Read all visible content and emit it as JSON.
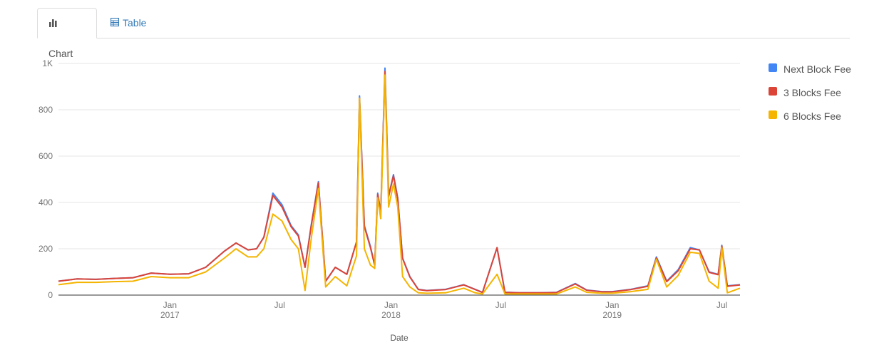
{
  "tabs": [
    {
      "label": "Chart",
      "icon": "bar-chart-icon",
      "active": true
    },
    {
      "label": "Table",
      "icon": "table-icon",
      "active": false
    }
  ],
  "colors": {
    "next": "#4285f4",
    "three": "#db4437",
    "six": "#f4b400",
    "grid": "#e6e6e6",
    "axis": "#333333",
    "text": "#757575"
  },
  "chart_data": {
    "type": "line",
    "title": "",
    "xlabel": "Date",
    "ylabel": "",
    "ylim": [
      0,
      1000
    ],
    "yticks": [
      0,
      200,
      400,
      600,
      800,
      1000
    ],
    "ytick_labels": [
      "0",
      "200",
      "400",
      "600",
      "800",
      "1K"
    ],
    "xlim": [
      "2016-07-01",
      "2019-07-31"
    ],
    "xticks": [
      {
        "date": "2017-01-01",
        "line1": "Jan",
        "line2": "2017"
      },
      {
        "date": "2017-07-01",
        "line1": "Jul",
        "line2": ""
      },
      {
        "date": "2018-01-01",
        "line1": "Jan",
        "line2": "2018"
      },
      {
        "date": "2018-07-01",
        "line1": "Jul",
        "line2": ""
      },
      {
        "date": "2019-01-01",
        "line1": "Jan",
        "line2": "2019"
      },
      {
        "date": "2019-07-01",
        "line1": "Jul",
        "line2": ""
      }
    ],
    "legend_position": "right",
    "series_names": [
      "Next Block Fee",
      "3 Blocks Fee",
      "6 Blocks Fee"
    ],
    "x": [
      "2016-07-01",
      "2016-08-01",
      "2016-09-01",
      "2016-10-01",
      "2016-11-01",
      "2016-12-01",
      "2017-01-01",
      "2017-02-01",
      "2017-03-01",
      "2017-04-01",
      "2017-04-20",
      "2017-05-10",
      "2017-05-24",
      "2017-06-05",
      "2017-06-20",
      "2017-07-05",
      "2017-07-20",
      "2017-08-01",
      "2017-08-12",
      "2017-08-22",
      "2017-09-03",
      "2017-09-15",
      "2017-10-01",
      "2017-10-20",
      "2017-11-05",
      "2017-11-10",
      "2017-11-18",
      "2017-11-28",
      "2017-12-05",
      "2017-12-10",
      "2017-12-15",
      "2017-12-22",
      "2017-12-28",
      "2018-01-05",
      "2018-01-12",
      "2018-01-20",
      "2018-02-01",
      "2018-02-15",
      "2018-03-01",
      "2018-04-01",
      "2018-05-01",
      "2018-05-20",
      "2018-06-01",
      "2018-06-25",
      "2018-07-08",
      "2018-07-15",
      "2018-08-01",
      "2018-09-01",
      "2018-10-01",
      "2018-11-01",
      "2018-11-20",
      "2018-12-15",
      "2019-01-01",
      "2019-02-01",
      "2019-03-01",
      "2019-03-15",
      "2019-04-01",
      "2019-04-20",
      "2019-05-10",
      "2019-05-25",
      "2019-06-10",
      "2019-06-25",
      "2019-07-01",
      "2019-07-10",
      "2019-07-31"
    ],
    "series": [
      {
        "name": "Next Block Fee",
        "color": "#4285f4",
        "values": [
          60,
          70,
          68,
          72,
          75,
          95,
          90,
          92,
          120,
          190,
          225,
          195,
          200,
          250,
          440,
          390,
          300,
          260,
          120,
          300,
          490,
          60,
          120,
          90,
          230,
          860,
          300,
          210,
          130,
          440,
          360,
          980,
          430,
          520,
          420,
          160,
          80,
          25,
          20,
          25,
          45,
          25,
          12,
          205,
          12,
          12,
          10,
          10,
          12,
          50,
          22,
          15,
          15,
          25,
          40,
          165,
          60,
          110,
          205,
          195,
          100,
          90,
          215,
          40,
          45
        ]
      },
      {
        "name": "3 Blocks Fee",
        "color": "#db4437",
        "values": [
          60,
          70,
          68,
          72,
          75,
          95,
          90,
          92,
          120,
          190,
          225,
          195,
          200,
          250,
          430,
          380,
          295,
          255,
          120,
          295,
          485,
          60,
          120,
          90,
          230,
          850,
          295,
          205,
          128,
          435,
          355,
          965,
          425,
          515,
          415,
          158,
          78,
          24,
          19,
          24,
          44,
          24,
          11,
          205,
          11,
          11,
          10,
          10,
          11,
          48,
          21,
          14,
          14,
          24,
          38,
          160,
          58,
          105,
          200,
          195,
          98,
          88,
          212,
          38,
          44
        ]
      },
      {
        "name": "6 Blocks Fee",
        "color": "#f4b400",
        "values": [
          45,
          55,
          55,
          58,
          60,
          80,
          75,
          75,
          100,
          160,
          200,
          165,
          165,
          200,
          350,
          320,
          240,
          200,
          20,
          240,
          460,
          35,
          80,
          40,
          170,
          850,
          200,
          130,
          115,
          420,
          330,
          950,
          380,
          480,
          380,
          80,
          35,
          10,
          8,
          10,
          30,
          10,
          5,
          90,
          5,
          5,
          5,
          5,
          5,
          35,
          12,
          8,
          8,
          15,
          25,
          155,
          35,
          85,
          185,
          180,
          60,
          30,
          205,
          10,
          30
        ]
      }
    ]
  }
}
